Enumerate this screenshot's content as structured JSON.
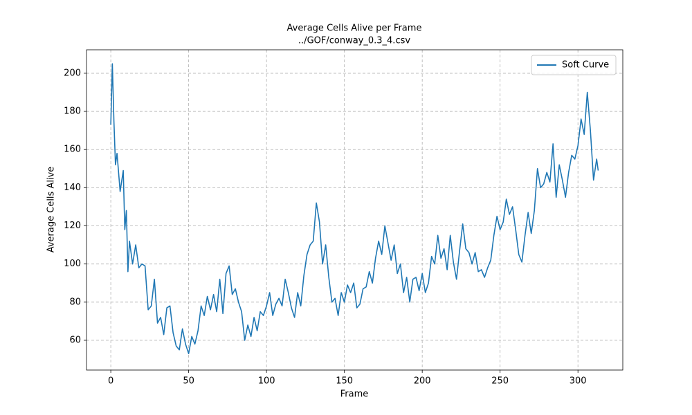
{
  "chart_data": {
    "type": "line",
    "title": "Average Cells Alive per Frame",
    "subtitle": "../GOF/conway_0.3_4.csv",
    "x_label": "Frame",
    "y_label": "Average Cells Alive",
    "x": [
      0,
      1,
      2,
      3,
      4,
      6,
      8,
      9,
      10,
      11,
      12,
      14,
      16,
      18,
      20,
      22,
      24,
      26,
      28,
      30,
      32,
      34,
      36,
      38,
      40,
      42,
      44,
      46,
      48,
      50,
      52,
      54,
      56,
      58,
      60,
      62,
      64,
      66,
      68,
      70,
      72,
      74,
      76,
      78,
      80,
      82,
      84,
      86,
      88,
      90,
      92,
      94,
      96,
      98,
      100,
      102,
      104,
      106,
      108,
      110,
      112,
      114,
      116,
      118,
      120,
      122,
      124,
      126,
      128,
      130,
      132,
      134,
      136,
      138,
      140,
      142,
      144,
      146,
      148,
      150,
      152,
      154,
      156,
      158,
      160,
      162,
      164,
      166,
      168,
      170,
      172,
      174,
      176,
      178,
      180,
      182,
      184,
      186,
      188,
      190,
      192,
      194,
      196,
      198,
      200,
      202,
      204,
      206,
      208,
      210,
      212,
      214,
      216,
      218,
      220,
      222,
      224,
      226,
      228,
      230,
      232,
      234,
      236,
      238,
      240,
      242,
      244,
      246,
      248,
      250,
      252,
      254,
      256,
      258,
      260,
      262,
      264,
      266,
      268,
      270,
      272,
      274,
      276,
      278,
      280,
      282,
      284,
      286,
      288,
      290,
      292,
      294,
      296,
      298,
      300,
      302,
      304,
      306,
      308,
      310,
      312,
      313
    ],
    "series": [
      {
        "name": "Soft Curve",
        "color": "#1f77b4",
        "values": [
          173,
          205,
          175,
          152,
          158,
          138,
          149,
          118,
          128,
          96,
          112,
          100,
          110,
          98,
          100,
          99,
          76,
          78,
          92,
          69,
          72,
          63,
          77,
          78,
          64,
          57,
          55,
          66,
          58,
          53,
          62,
          58,
          65,
          78,
          73,
          83,
          76,
          84,
          75,
          92,
          74,
          95,
          99,
          84,
          87,
          80,
          75,
          60,
          68,
          62,
          72,
          65,
          75,
          73,
          78,
          85,
          73,
          79,
          82,
          78,
          92,
          85,
          77,
          72,
          85,
          78,
          94,
          105,
          110,
          112,
          132,
          122,
          100,
          110,
          93,
          80,
          82,
          73,
          85,
          80,
          89,
          85,
          90,
          77,
          79,
          87,
          88,
          96,
          90,
          103,
          112,
          105,
          120,
          111,
          102,
          110,
          95,
          100,
          85,
          93,
          80,
          92,
          93,
          86,
          95,
          85,
          90,
          104,
          100,
          115,
          103,
          108,
          97,
          115,
          101,
          92,
          107,
          121,
          108,
          106,
          100,
          106,
          96,
          97,
          93,
          98,
          102,
          115,
          125,
          118,
          122,
          134,
          126,
          130,
          118,
          105,
          101,
          115,
          127,
          116,
          128,
          150,
          140,
          142,
          148,
          143,
          163,
          135,
          152,
          144,
          135,
          148,
          157,
          155,
          162,
          176,
          168,
          190,
          170,
          144,
          155,
          149
        ]
      }
    ],
    "xlim": [
      -15.6,
      328.8
    ],
    "ylim": [
      44.4,
      212.3
    ],
    "xticks": [
      0,
      50,
      100,
      150,
      200,
      250,
      300
    ],
    "yticks": [
      60,
      80,
      100,
      120,
      140,
      160,
      180,
      200
    ],
    "grid": true,
    "legend": "upper right"
  }
}
